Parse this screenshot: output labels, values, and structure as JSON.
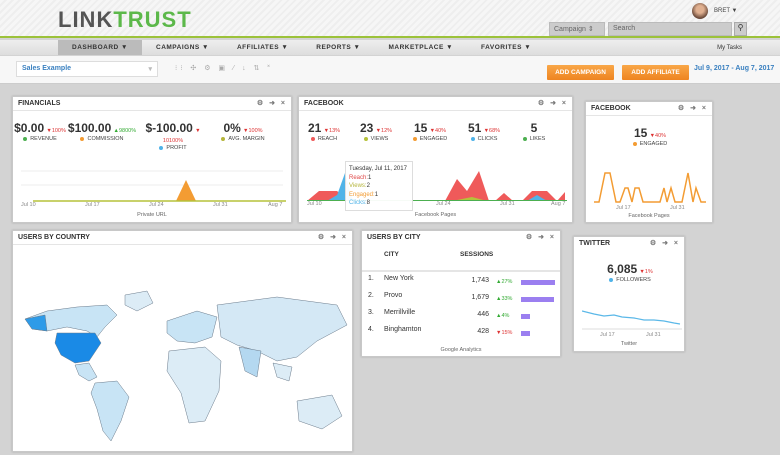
{
  "header": {
    "logo": "LINKTRUST",
    "logo_a": "LINK",
    "logo_b": "TRUST",
    "user": "BRET ▼",
    "campaign_select": "Campaign ⇕",
    "search_placeholder": "Search",
    "search_icon": "magnifier"
  },
  "nav": {
    "items": [
      "DASHBOARD ▼",
      "CAMPAIGNS ▼",
      "AFFILIATES ▼",
      "REPORTS ▼",
      "MARKETPLACE ▼",
      "FAVORITES ▼"
    ],
    "active": 0,
    "my_tasks": "My Tasks"
  },
  "toolbar": {
    "dashboard_select": "Sales Example",
    "tools": "⁝⁝ ✣ ⚙ ▣ ⁄ ↓ ⇅ ˟",
    "add_campaign": "ADD CAMPAIGN",
    "add_affiliate": "ADD AFFILIATE",
    "date_range": "Jul 9, 2017 - Aug 7, 2017"
  },
  "financials": {
    "title": "FINANCIALS",
    "stats": [
      {
        "value": "$0.00",
        "delta": "▼100%",
        "label": "REVENUE",
        "color": "#4caf50",
        "up": false
      },
      {
        "value": "$100.00",
        "delta": "▲9800%",
        "label": "COMMISSION",
        "color": "#f39c33",
        "up": true
      },
      {
        "value": "$-100.00",
        "delta": "▼ 10100%",
        "label": "PROFIT",
        "color": "#4fb3e8",
        "up": false
      },
      {
        "value": "0%",
        "delta": "▼100%",
        "label": "AVG. MARGIN",
        "color": "#b5b53a",
        "up": false
      }
    ],
    "x_ticks": [
      "Jul 10",
      "Jul 17",
      "Jul 24",
      "Jul 31",
      "Aug 7"
    ],
    "caption": "Private URL"
  },
  "facebook": {
    "title": "FACEBOOK",
    "stats": [
      {
        "value": "21",
        "delta": "▼13%",
        "label": "REACH",
        "color": "#ef5a5a"
      },
      {
        "value": "23",
        "delta": "▼12%",
        "label": "VIEWS",
        "color": "#b5c23a"
      },
      {
        "value": "15",
        "delta": "▼40%",
        "label": "ENGAGED",
        "color": "#f39c33"
      },
      {
        "value": "51",
        "delta": "▼68%",
        "label": "CLICKS",
        "color": "#4fb3e8"
      },
      {
        "value": "5",
        "delta": "",
        "label": "LIKES",
        "color": "#4caf50"
      }
    ],
    "x_ticks": [
      "Jul 10",
      "Jul 24",
      "Jul 31",
      "Aug 7"
    ],
    "caption": "Facebook Pages",
    "tooltip": {
      "date": "Tuesday, Jul 11, 2017",
      "rows": [
        {
          "k": "Reach:",
          "v": "1",
          "c": "#e04848"
        },
        {
          "k": "Views:",
          "v": "2",
          "c": "#b5b53a"
        },
        {
          "k": "Engaged:",
          "v": "1",
          "c": "#f39c33"
        },
        {
          "k": "Clicks:",
          "v": "8",
          "c": "#4fb3e8"
        }
      ]
    }
  },
  "facebook_small": {
    "title": "FACEBOOK",
    "value": "15",
    "delta": "▼40%",
    "label": "ENGAGED",
    "x_ticks": [
      "Jul 17",
      "Jul 31"
    ],
    "caption": "Facebook Pages"
  },
  "country": {
    "title": "USERS BY COUNTRY"
  },
  "city": {
    "title": "USERS BY CITY",
    "col_city": "CITY",
    "col_sessions": "SESSIONS",
    "rows": [
      {
        "rank": "1.",
        "city": "New York",
        "sessions": "1,743",
        "delta": "▲27%",
        "up": true,
        "share": 1.0
      },
      {
        "rank": "2.",
        "city": "Provo",
        "sessions": "1,679",
        "delta": "▲33%",
        "up": true,
        "share": 0.96
      },
      {
        "rank": "3.",
        "city": "Merrillville",
        "sessions": "446",
        "delta": "▲4%",
        "up": true,
        "share": 0.26
      },
      {
        "rank": "4.",
        "city": "Binghamton",
        "sessions": "428",
        "delta": "▼15%",
        "up": false,
        "share": 0.25
      }
    ],
    "caption": "Google Analytics"
  },
  "twitter": {
    "title": "TWITTER",
    "value": "6,085",
    "delta": "▼1%",
    "label": "FOLLOWERS",
    "x_ticks": [
      "Jul 17",
      "Jul 31"
    ],
    "caption": "Twitter"
  },
  "panel_icons": "⚙ ➜ ×"
}
